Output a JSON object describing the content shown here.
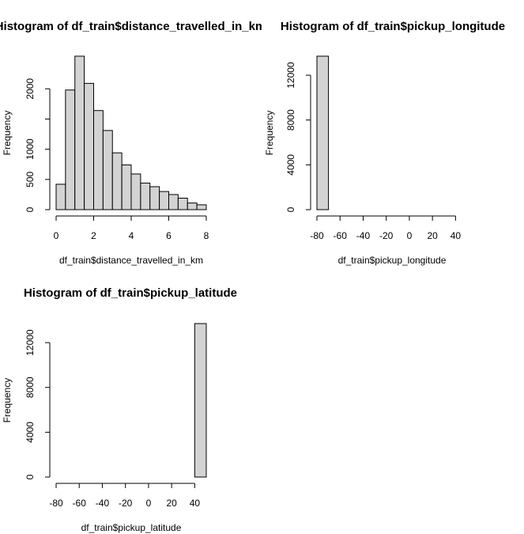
{
  "figure": {
    "background": "#ffffff"
  },
  "chart_data": [
    {
      "type": "bar",
      "subtype": "histogram",
      "title": "Histogram of df_train$distance_travelled_in_km",
      "xlabel": "df_train$distance_travelled_in_km",
      "ylabel": "Frequency",
      "bar_fill": "#d3d3d3",
      "bar_stroke": "#000000",
      "bin_edges": [
        0,
        0.5,
        1,
        1.5,
        2,
        2.5,
        3,
        3.5,
        4,
        4.5,
        5,
        5.5,
        6,
        6.5,
        7,
        7.5,
        8
      ],
      "values": [
        420,
        1980,
        2540,
        2090,
        1640,
        1310,
        940,
        740,
        590,
        440,
        380,
        300,
        250,
        190,
        110,
        80
      ],
      "xlim": [
        0,
        8
      ],
      "ylim": [
        0,
        2540
      ],
      "x_ticks": [
        0,
        2,
        4,
        6,
        8
      ],
      "x_tick_labels": [
        "0",
        "2",
        "4",
        "6",
        "8"
      ],
      "y_ticks": [
        0,
        500,
        1000,
        1500,
        2000
      ],
      "y_tick_labels": [
        "0",
        "500",
        "1000",
        "",
        "2000"
      ]
    },
    {
      "type": "bar",
      "subtype": "histogram",
      "title": "Histogram of df_train$pickup_longitude",
      "xlabel": "df_train$pickup_longitude",
      "ylabel": "Frequency",
      "bar_fill": "#d3d3d3",
      "bar_stroke": "#000000",
      "bin_edges": [
        -80,
        -70,
        -60,
        -50,
        -40,
        -30,
        -20,
        -10,
        0,
        10,
        20,
        30,
        40,
        50
      ],
      "values": [
        13700,
        0,
        0,
        0,
        0,
        0,
        0,
        0,
        0,
        0,
        0,
        0,
        0
      ],
      "xlim": [
        -80,
        50
      ],
      "ylim": [
        0,
        13700
      ],
      "x_ticks": [
        -80,
        -60,
        -40,
        -20,
        0,
        20,
        40
      ],
      "x_tick_labels": [
        "-80",
        "-60",
        "-40",
        "-20",
        "0",
        "20",
        "40"
      ],
      "y_ticks": [
        0,
        4000,
        8000,
        12000
      ],
      "y_tick_labels": [
        "0",
        "4000",
        "8000",
        "12000"
      ]
    },
    {
      "type": "bar",
      "subtype": "histogram",
      "title": "Histogram of df_train$pickup_latitude",
      "xlabel": "df_train$pickup_latitude",
      "ylabel": "Frequency",
      "bar_fill": "#d3d3d3",
      "bar_stroke": "#000000",
      "bin_edges": [
        -80,
        -70,
        -60,
        -50,
        -40,
        -30,
        -20,
        -10,
        0,
        10,
        20,
        30,
        40,
        50
      ],
      "values": [
        0,
        0,
        0,
        0,
        0,
        0,
        0,
        0,
        0,
        0,
        0,
        0,
        13700
      ],
      "xlim": [
        -80,
        50
      ],
      "ylim": [
        0,
        13700
      ],
      "x_ticks": [
        -80,
        -60,
        -40,
        -20,
        0,
        20,
        40
      ],
      "x_tick_labels": [
        "-80",
        "-60",
        "-40",
        "-20",
        "0",
        "20",
        "40"
      ],
      "y_ticks": [
        0,
        4000,
        8000,
        12000
      ],
      "y_tick_labels": [
        "0",
        "4000",
        "8000",
        "12000"
      ]
    }
  ]
}
